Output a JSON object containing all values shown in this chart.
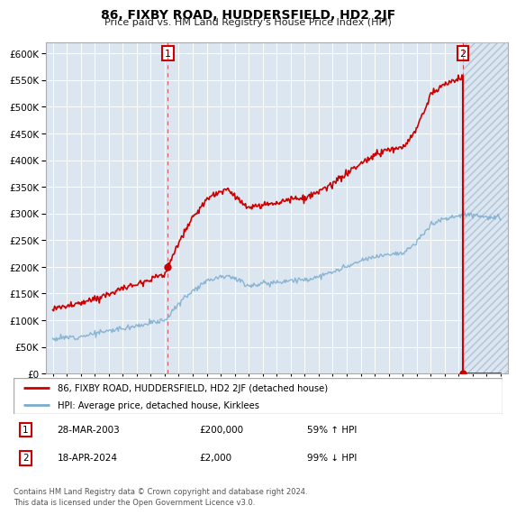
{
  "title": "86, FIXBY ROAD, HUDDERSFIELD, HD2 2JF",
  "subtitle": "Price paid vs. HM Land Registry's House Price Index (HPI)",
  "legend_line1": "86, FIXBY ROAD, HUDDERSFIELD, HD2 2JF (detached house)",
  "legend_line2": "HPI: Average price, detached house, Kirklees",
  "annotation1_label": "1",
  "annotation1_date": "28-MAR-2003",
  "annotation1_price": "£200,000",
  "annotation1_hpi": "59% ↑ HPI",
  "annotation2_label": "2",
  "annotation2_date": "18-APR-2024",
  "annotation2_price": "£2,000",
  "annotation2_hpi": "99% ↓ HPI",
  "footer": "Contains HM Land Registry data © Crown copyright and database right 2024.\nThis data is licensed under the Open Government Licence v3.0.",
  "ylim": [
    0,
    620000
  ],
  "yticks": [
    0,
    50000,
    100000,
    150000,
    200000,
    250000,
    300000,
    350000,
    400000,
    450000,
    500000,
    550000,
    600000
  ],
  "background_color": "#dce6f1",
  "red_color": "#cc0000",
  "blue_color": "#7aaccd",
  "sale1_year": 2003.23,
  "sale1_price": 200000,
  "sale2_year": 2024.3,
  "sale2_price": 2000,
  "xmin": 1994.5,
  "xmax": 2027.5
}
